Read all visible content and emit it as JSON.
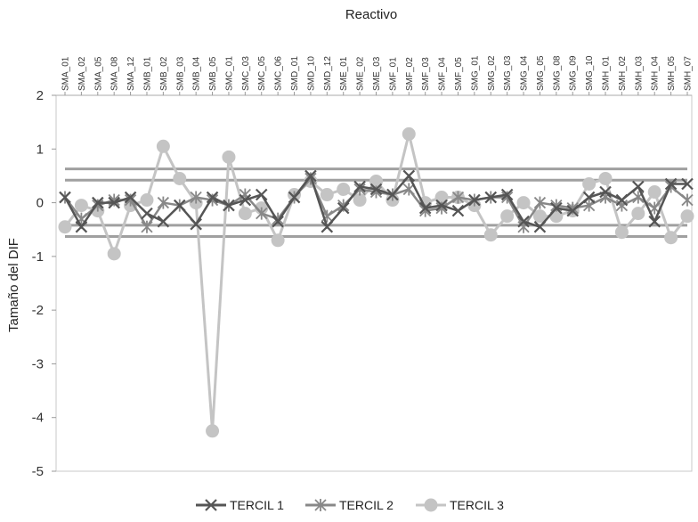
{
  "chart_data": {
    "type": "line",
    "xlabel": "Reactivo",
    "ylabel": "Tamaño del DIF",
    "ylim": [
      -5,
      2
    ],
    "yticks": [
      "2",
      "1",
      "0",
      "-1",
      "-2",
      "-3",
      "-4",
      "-5"
    ],
    "grid": false,
    "legend_position": "bottom",
    "x_axis_position": "top",
    "categories": [
      "SMA_01",
      "SMA_02",
      "SMA_05",
      "SMA_08",
      "SMA_12",
      "SMB_01",
      "SMB_02",
      "SMB_03",
      "SMB_04",
      "SMB_05",
      "SMC_01",
      "SMC_03",
      "SMC_05",
      "SMC_06",
      "SMD_01",
      "SMD_10",
      "SMD_12",
      "SME_01",
      "SME_02",
      "SME_03",
      "SMF_01",
      "SMF_02",
      "SMF_03",
      "SMF_04",
      "SMF_05",
      "SMG_01",
      "SMG_02",
      "SMG_03",
      "SMG_04",
      "SMG_05",
      "SMG_08",
      "SMG_09",
      "SMG_10",
      "SMH_01",
      "SMH_02",
      "SMH_03",
      "SMH_04",
      "SMH_05",
      "SMH_07"
    ],
    "category_count_note": "",
    "x_points": 39,
    "series": [
      {
        "name": "TERCIL 1",
        "marker": "x",
        "color": "#555555",
        "values": [
          0.1,
          -0.45,
          0.0,
          0.0,
          0.1,
          -0.2,
          -0.35,
          -0.05,
          -0.4,
          0.1,
          -0.05,
          0.05,
          0.15,
          -0.35,
          0.1,
          0.5,
          -0.45,
          -0.1,
          0.3,
          0.25,
          0.15,
          0.5,
          -0.1,
          -0.05,
          -0.15,
          0.05,
          0.1,
          0.15,
          -0.35,
          -0.45,
          -0.1,
          -0.15,
          0.1,
          0.2,
          0.05,
          0.3,
          -0.35,
          0.35,
          0.35
        ]
      },
      {
        "name": "TERCIL 2",
        "marker": "*",
        "color": "#888888",
        "values": [
          0.1,
          -0.3,
          -0.05,
          0.05,
          0.05,
          -0.45,
          0.0,
          -0.05,
          0.1,
          0.05,
          -0.05,
          0.15,
          -0.2,
          -0.3,
          0.1,
          0.45,
          -0.25,
          -0.05,
          0.25,
          0.2,
          0.15,
          0.25,
          -0.15,
          -0.1,
          0.1,
          0.05,
          0.1,
          0.1,
          -0.45,
          0.0,
          -0.05,
          -0.1,
          -0.05,
          0.1,
          -0.05,
          0.1,
          -0.1,
          0.3,
          0.05
        ]
      },
      {
        "name": "TERCIL 3",
        "marker": "circle",
        "color": "#c4c4c4",
        "values": [
          -0.45,
          -0.05,
          -0.15,
          -0.95,
          -0.05,
          0.05,
          1.05,
          0.45,
          0.0,
          -4.25,
          0.85,
          -0.2,
          -0.1,
          -0.7,
          0.15,
          0.4,
          0.15,
          0.25,
          0.05,
          0.4,
          0.05,
          1.28,
          0.0,
          0.1,
          0.1,
          -0.05,
          -0.6,
          -0.25,
          0.0,
          -0.25,
          -0.25,
          -0.15,
          0.35,
          0.45,
          -0.55,
          -0.2,
          0.2,
          -0.65,
          -0.25
        ]
      }
    ],
    "reference_lines": [
      0.63,
      0.42,
      -0.42,
      -0.63
    ],
    "reference_line_color": "#a0a0a0"
  }
}
